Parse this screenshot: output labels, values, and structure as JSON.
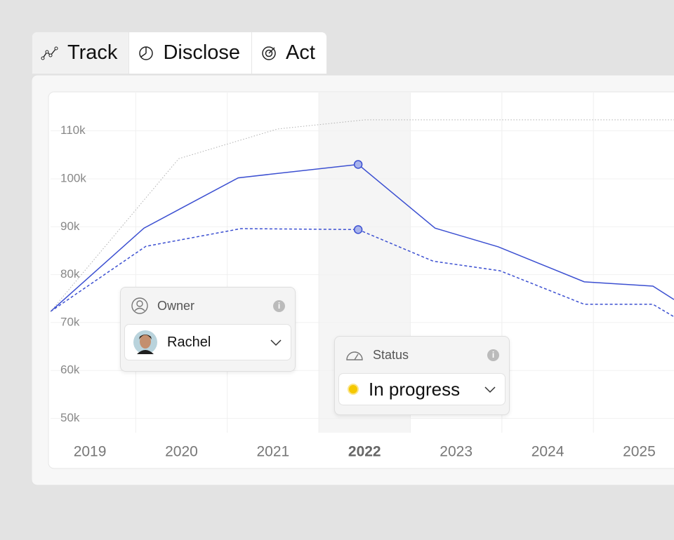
{
  "tabs": [
    "Track",
    "Disclose",
    "Act"
  ],
  "chart_data": {
    "type": "line",
    "xlim": [
      2018.57,
      2025.38
    ],
    "xticks": [
      2019,
      2020,
      2021,
      2022,
      2023,
      2024,
      2025
    ],
    "ylim": [
      47000,
      118000
    ],
    "yticks": [
      {
        "value": 50000,
        "label": "50k"
      },
      {
        "value": 60000,
        "label": "60k"
      },
      {
        "value": 70000,
        "label": "70k"
      },
      {
        "value": 80000,
        "label": "80k"
      },
      {
        "value": 90000,
        "label": "90k"
      },
      {
        "value": 100000,
        "label": "100k"
      },
      {
        "value": 110000,
        "label": "110k"
      }
    ],
    "grid": true,
    "highlight_x": 2022,
    "series": [
      {
        "color": "#3b4fd1",
        "style": "solid",
        "x": [
          2018.57,
          2019.59,
          2020.62,
          2021.93,
          2022.77,
          2023.46,
          2024.4,
          2025.15,
          2025.38
        ],
        "values": [
          72300,
          89700,
          100200,
          103000,
          89700,
          85800,
          78500,
          77600,
          74800
        ]
      },
      {
        "color": "#3b4fd1",
        "style": "dashed",
        "x": [
          2018.57,
          2019.61,
          2020.65,
          2021.93,
          2022.75,
          2023.48,
          2024.4,
          2025.15,
          2025.38
        ],
        "values": [
          72300,
          85900,
          89600,
          89400,
          82800,
          80800,
          73800,
          73800,
          71200
        ]
      },
      {
        "color": "#b0b0b0",
        "style": "dotted",
        "x": [
          2018.57,
          2019.97,
          2021.05,
          2022.0,
          2025.38
        ],
        "values": [
          72300,
          104200,
          110400,
          112300,
          112300
        ]
      }
    ]
  },
  "owner_card": {
    "label": "Owner",
    "value": "Rachel"
  },
  "status_card": {
    "label": "Status",
    "value": "In progress"
  }
}
